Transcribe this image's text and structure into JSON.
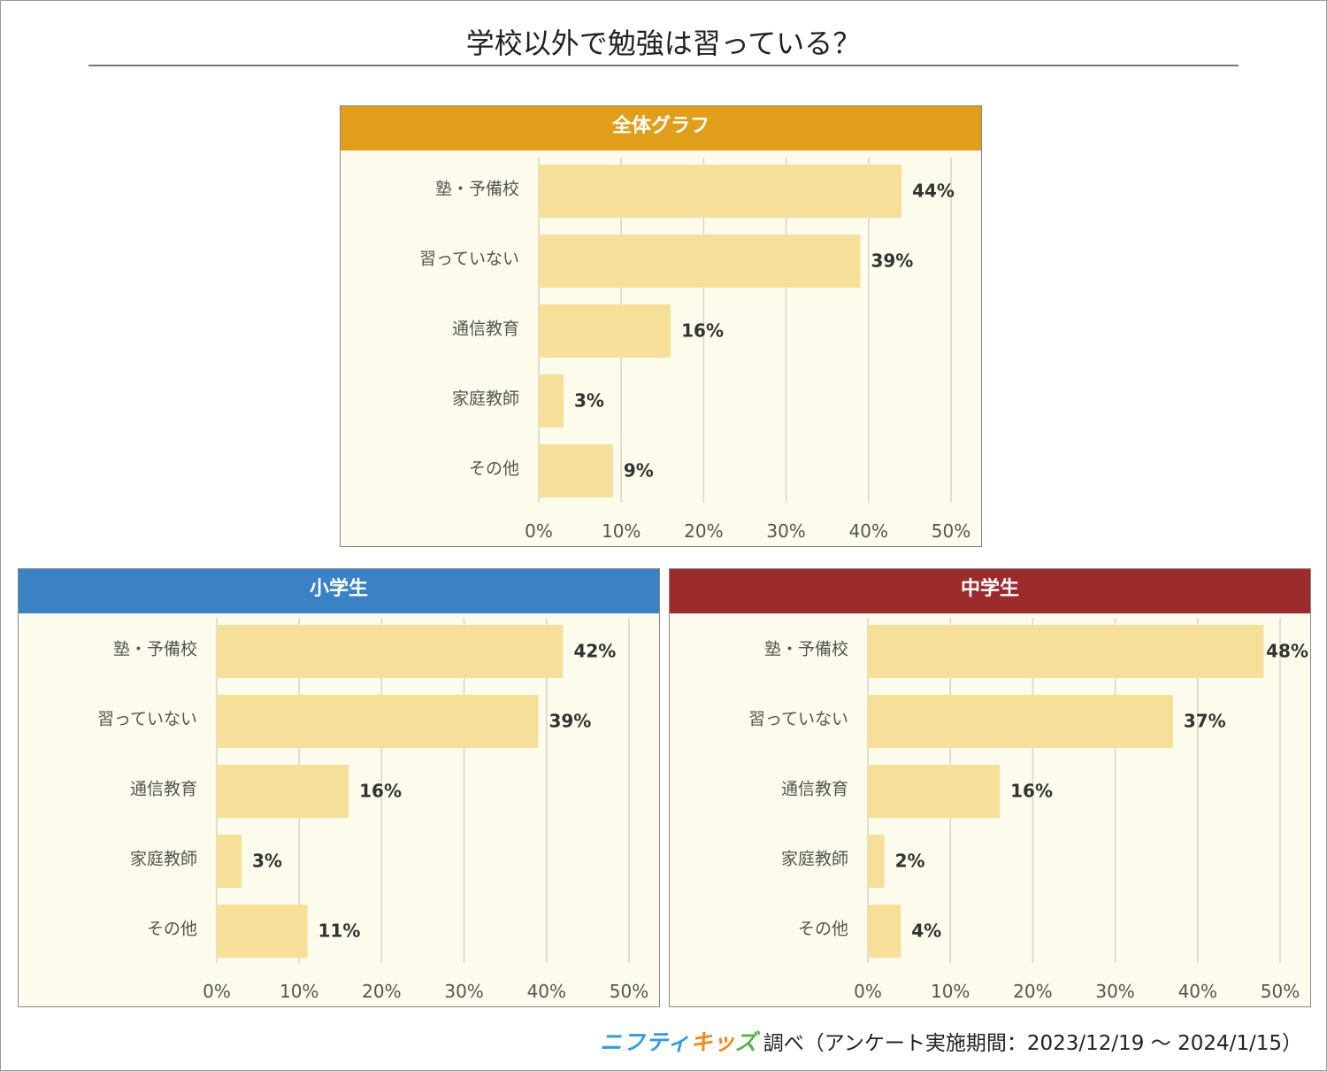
{
  "title": "学校以外で勉強は習っている？",
  "footer": {
    "logo_part1": "ニフティ",
    "logo_part2": "キッ",
    "logo_part3": "ズ",
    "text": "調べ（アンケート実施期間：2023/12/19 ～ 2024/1/15）"
  },
  "colors": {
    "bar": "#f6df98",
    "panel_bg": "#fdfbeb",
    "grid": "#d9d6c6",
    "overall_header": "#e09e1a",
    "elementary_header": "#3a82c4",
    "junior_header": "#9c2b2b"
  },
  "chart_data": [
    {
      "type": "bar",
      "orientation": "horizontal",
      "title": "全体グラフ",
      "categories": [
        "塾・予備校",
        "習っていない",
        "通信教育",
        "家庭教師",
        "その他"
      ],
      "values": [
        44,
        39,
        16,
        3,
        9
      ],
      "value_labels": [
        "44%",
        "39%",
        "16%",
        "3%",
        "9%"
      ],
      "xlim": [
        0,
        50
      ],
      "xticks": [
        "0%",
        "10%",
        "20%",
        "30%",
        "40%",
        "50%"
      ],
      "grid": true
    },
    {
      "type": "bar",
      "orientation": "horizontal",
      "title": "小学生",
      "categories": [
        "塾・予備校",
        "習っていない",
        "通信教育",
        "家庭教師",
        "その他"
      ],
      "values": [
        42,
        39,
        16,
        3,
        11
      ],
      "value_labels": [
        "42%",
        "39%",
        "16%",
        "3%",
        "11%"
      ],
      "xlim": [
        0,
        50
      ],
      "xticks": [
        "0%",
        "10%",
        "20%",
        "30%",
        "40%",
        "50%"
      ],
      "grid": true
    },
    {
      "type": "bar",
      "orientation": "horizontal",
      "title": "中学生",
      "categories": [
        "塾・予備校",
        "習っていない",
        "通信教育",
        "家庭教師",
        "その他"
      ],
      "values": [
        48,
        37,
        16,
        2,
        4
      ],
      "value_labels": [
        "48%",
        "37%",
        "16%",
        "2%",
        "4%"
      ],
      "xlim": [
        0,
        50
      ],
      "xticks": [
        "0%",
        "10%",
        "20%",
        "30%",
        "40%",
        "50%"
      ],
      "grid": true
    }
  ]
}
